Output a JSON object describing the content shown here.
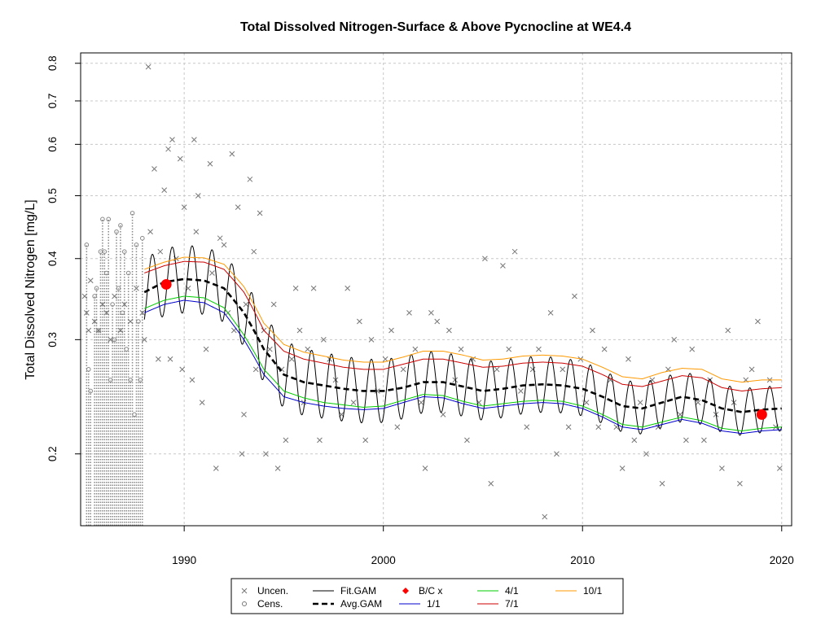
{
  "chart_data": {
    "type": "scatter",
    "title": "Total Dissolved Nitrogen-Surface & Above Pycnocline at WE4.4",
    "xlabel": "",
    "ylabel": "Total Dissolved Nitrogen [mg/L]",
    "x_ticks": [
      "1990",
      "2000",
      "2010",
      "2020"
    ],
    "y_ticks": [
      "0.2",
      "0.3",
      "0.4",
      "0.5",
      "0.6",
      "0.7",
      "0.8"
    ],
    "y_scale": "log",
    "xlim": [
      1984.8,
      2020.5
    ],
    "ylim": [
      0.155,
      0.83
    ],
    "grid": true,
    "legend_position": "bottom",
    "legend": [
      {
        "label": "Uncen.",
        "symbol": "x",
        "color": "#777777"
      },
      {
        "label": "Cens.",
        "symbol": "circle",
        "color": "#777777"
      },
      {
        "label": "Fit.GAM",
        "symbol": "line",
        "color": "#000000"
      },
      {
        "label": "Avg.GAM",
        "symbol": "dashed",
        "color": "#000000"
      },
      {
        "label": "B/C x",
        "symbol": "diamond",
        "color": "#ff0000"
      },
      {
        "label": "1/1",
        "symbol": "line",
        "color": "#0000cc"
      },
      {
        "label": "4/1",
        "symbol": "line",
        "color": "#00cc00"
      },
      {
        "label": "7/1",
        "symbol": "line",
        "color": "#cc0000"
      },
      {
        "label": "10/1",
        "symbol": "line",
        "color": "#ff9900"
      }
    ],
    "colors": {
      "uncensored": "#777777",
      "censored": "#888888",
      "fit": "#000000",
      "avg": "#000000",
      "bc": "#ff0000",
      "d1": "#0000cc",
      "d4": "#00cc00",
      "d7": "#cc0000",
      "d10": "#ff9900",
      "grid": "#c8c8c8"
    },
    "uncensored_points": [
      [
        1985.0,
        0.35
      ],
      [
        1985.1,
        0.33
      ],
      [
        1985.2,
        0.31
      ],
      [
        1985.3,
        0.37
      ],
      [
        1985.5,
        0.32
      ],
      [
        1985.7,
        0.31
      ],
      [
        1985.9,
        0.34
      ],
      [
        1986.1,
        0.33
      ],
      [
        1986.3,
        0.3
      ],
      [
        1986.5,
        0.35
      ],
      [
        1986.8,
        0.31
      ],
      [
        1987.0,
        0.34
      ],
      [
        1987.3,
        0.32
      ],
      [
        1987.6,
        0.36
      ],
      [
        1987.9,
        0.33
      ],
      [
        1988.0,
        0.3
      ],
      [
        1988.2,
        0.79
      ],
      [
        1988.3,
        0.44
      ],
      [
        1988.5,
        0.55
      ],
      [
        1988.7,
        0.28
      ],
      [
        1988.8,
        0.41
      ],
      [
        1989.0,
        0.51
      ],
      [
        1989.2,
        0.59
      ],
      [
        1989.3,
        0.28
      ],
      [
        1989.4,
        0.61
      ],
      [
        1989.6,
        0.4
      ],
      [
        1989.8,
        0.57
      ],
      [
        1989.9,
        0.27
      ],
      [
        1990.0,
        0.48
      ],
      [
        1990.2,
        0.36
      ],
      [
        1990.4,
        0.26
      ],
      [
        1990.5,
        0.61
      ],
      [
        1990.6,
        0.44
      ],
      [
        1990.7,
        0.5
      ],
      [
        1990.9,
        0.24
      ],
      [
        1991.1,
        0.29
      ],
      [
        1991.3,
        0.56
      ],
      [
        1991.4,
        0.38
      ],
      [
        1991.6,
        0.19
      ],
      [
        1991.8,
        0.43
      ],
      [
        1992.0,
        0.42
      ],
      [
        1992.2,
        0.33
      ],
      [
        1992.4,
        0.58
      ],
      [
        1992.5,
        0.31
      ],
      [
        1992.7,
        0.48
      ],
      [
        1992.9,
        0.2
      ],
      [
        1993.0,
        0.23
      ],
      [
        1993.1,
        0.34
      ],
      [
        1993.3,
        0.53
      ],
      [
        1993.5,
        0.41
      ],
      [
        1993.6,
        0.27
      ],
      [
        1993.8,
        0.47
      ],
      [
        1994.0,
        0.31
      ],
      [
        1994.1,
        0.2
      ],
      [
        1994.3,
        0.29
      ],
      [
        1994.5,
        0.34
      ],
      [
        1994.7,
        0.19
      ],
      [
        1994.9,
        0.27
      ],
      [
        1995.1,
        0.21
      ],
      [
        1995.4,
        0.28
      ],
      [
        1995.6,
        0.36
      ],
      [
        1995.8,
        0.31
      ],
      [
        1996.0,
        0.24
      ],
      [
        1996.2,
        0.29
      ],
      [
        1996.5,
        0.36
      ],
      [
        1996.8,
        0.21
      ],
      [
        1997.0,
        0.3
      ],
      [
        1997.3,
        0.28
      ],
      [
        1997.6,
        0.26
      ],
      [
        1997.9,
        0.23
      ],
      [
        1998.2,
        0.36
      ],
      [
        1998.5,
        0.24
      ],
      [
        1998.8,
        0.32
      ],
      [
        1999.1,
        0.21
      ],
      [
        1999.4,
        0.3
      ],
      [
        1999.7,
        0.25
      ],
      [
        2000.1,
        0.28
      ],
      [
        2000.4,
        0.31
      ],
      [
        2000.7,
        0.22
      ],
      [
        2001.0,
        0.27
      ],
      [
        2001.3,
        0.33
      ],
      [
        2001.6,
        0.29
      ],
      [
        2001.9,
        0.24
      ],
      [
        2002.1,
        0.19
      ],
      [
        2002.4,
        0.33
      ],
      [
        2002.7,
        0.32
      ],
      [
        2003.0,
        0.23
      ],
      [
        2003.3,
        0.31
      ],
      [
        2003.6,
        0.26
      ],
      [
        2003.9,
        0.29
      ],
      [
        2004.2,
        0.21
      ],
      [
        2004.5,
        0.28
      ],
      [
        2004.8,
        0.24
      ],
      [
        2005.1,
        0.4
      ],
      [
        2005.4,
        0.18
      ],
      [
        2005.7,
        0.27
      ],
      [
        2006.0,
        0.39
      ],
      [
        2006.3,
        0.29
      ],
      [
        2006.6,
        0.41
      ],
      [
        2006.9,
        0.25
      ],
      [
        2007.2,
        0.22
      ],
      [
        2007.5,
        0.27
      ],
      [
        2007.8,
        0.29
      ],
      [
        2008.1,
        0.16
      ],
      [
        2008.4,
        0.33
      ],
      [
        2008.7,
        0.2
      ],
      [
        2009.0,
        0.27
      ],
      [
        2009.3,
        0.22
      ],
      [
        2009.6,
        0.35
      ],
      [
        2009.9,
        0.28
      ],
      [
        2010.2,
        0.24
      ],
      [
        2010.5,
        0.31
      ],
      [
        2010.8,
        0.22
      ],
      [
        2011.1,
        0.29
      ],
      [
        2011.4,
        0.26
      ],
      [
        2011.7,
        0.22
      ],
      [
        2012.0,
        0.19
      ],
      [
        2012.3,
        0.28
      ],
      [
        2012.6,
        0.21
      ],
      [
        2012.9,
        0.24
      ],
      [
        2013.2,
        0.2
      ],
      [
        2013.5,
        0.26
      ],
      [
        2013.8,
        0.22
      ],
      [
        2014.0,
        0.18
      ],
      [
        2014.3,
        0.27
      ],
      [
        2014.6,
        0.3
      ],
      [
        2014.9,
        0.23
      ],
      [
        2015.2,
        0.21
      ],
      [
        2015.5,
        0.29
      ],
      [
        2015.8,
        0.24
      ],
      [
        2016.1,
        0.21
      ],
      [
        2016.4,
        0.26
      ],
      [
        2016.7,
        0.23
      ],
      [
        2017.0,
        0.19
      ],
      [
        2017.3,
        0.31
      ],
      [
        2017.6,
        0.24
      ],
      [
        2017.9,
        0.18
      ],
      [
        2018.2,
        0.26
      ],
      [
        2018.5,
        0.27
      ],
      [
        2018.8,
        0.32
      ],
      [
        2019.1,
        0.23
      ],
      [
        2019.4,
        0.26
      ],
      [
        2019.7,
        0.22
      ],
      [
        2019.9,
        0.19
      ]
    ],
    "censored_points": [
      [
        1985.1,
        0.42
      ],
      [
        1985.2,
        0.27
      ],
      [
        1985.3,
        0.25
      ],
      [
        1985.5,
        0.35
      ],
      [
        1985.6,
        0.36
      ],
      [
        1985.7,
        0.31
      ],
      [
        1985.8,
        0.41
      ],
      [
        1985.9,
        0.46
      ],
      [
        1986.0,
        0.41
      ],
      [
        1986.1,
        0.38
      ],
      [
        1986.2,
        0.46
      ],
      [
        1986.3,
        0.26
      ],
      [
        1986.4,
        0.34
      ],
      [
        1986.5,
        0.3
      ],
      [
        1986.6,
        0.44
      ],
      [
        1986.7,
        0.36
      ],
      [
        1986.8,
        0.45
      ],
      [
        1986.9,
        0.33
      ],
      [
        1987.0,
        0.41
      ],
      [
        1987.1,
        0.29
      ],
      [
        1987.2,
        0.38
      ],
      [
        1987.3,
        0.26
      ],
      [
        1987.4,
        0.47
      ],
      [
        1987.5,
        0.23
      ],
      [
        1987.6,
        0.42
      ],
      [
        1987.7,
        0.32
      ],
      [
        1987.8,
        0.26
      ],
      [
        1987.9,
        0.43
      ]
    ],
    "censor_floor": 0.155,
    "bc_points": [
      {
        "x": 1989.1,
        "y": 0.365
      },
      {
        "x": 2019.0,
        "y": 0.23
      }
    ],
    "curves": {
      "years": [
        1988.0,
        1989.0,
        1990.0,
        1991.0,
        1992.0,
        1993.0,
        1994.0,
        1995.0,
        1996.0,
        1997.0,
        1998.0,
        1999.0,
        2000.0,
        2001.0,
        2002.0,
        2003.0,
        2004.0,
        2005.0,
        2006.0,
        2007.0,
        2008.0,
        2009.0,
        2010.0,
        2011.0,
        2012.0,
        2013.0,
        2014.0,
        2015.0,
        2016.0,
        2017.0,
        2018.0,
        2019.0,
        2020.0
      ],
      "avg_gam": [
        0.355,
        0.368,
        0.372,
        0.37,
        0.36,
        0.33,
        0.29,
        0.265,
        0.258,
        0.255,
        0.252,
        0.25,
        0.25,
        0.253,
        0.258,
        0.258,
        0.254,
        0.25,
        0.252,
        0.255,
        0.256,
        0.255,
        0.252,
        0.245,
        0.237,
        0.235,
        0.24,
        0.245,
        0.242,
        0.235,
        0.232,
        0.234,
        0.235
      ],
      "d1": [
        0.33,
        0.34,
        0.345,
        0.342,
        0.33,
        0.3,
        0.265,
        0.245,
        0.24,
        0.237,
        0.235,
        0.234,
        0.235,
        0.24,
        0.245,
        0.244,
        0.239,
        0.235,
        0.237,
        0.239,
        0.24,
        0.239,
        0.235,
        0.228,
        0.22,
        0.218,
        0.222,
        0.226,
        0.223,
        0.217,
        0.215,
        0.217,
        0.218
      ],
      "d4": [
        0.335,
        0.345,
        0.35,
        0.348,
        0.336,
        0.305,
        0.27,
        0.25,
        0.244,
        0.24,
        0.238,
        0.236,
        0.237,
        0.242,
        0.247,
        0.246,
        0.241,
        0.237,
        0.239,
        0.241,
        0.242,
        0.241,
        0.237,
        0.23,
        0.222,
        0.22,
        0.224,
        0.228,
        0.225,
        0.219,
        0.217,
        0.219,
        0.22
      ],
      "d7": [
        0.38,
        0.39,
        0.396,
        0.395,
        0.385,
        0.355,
        0.31,
        0.288,
        0.28,
        0.276,
        0.272,
        0.27,
        0.27,
        0.275,
        0.28,
        0.28,
        0.276,
        0.272,
        0.273,
        0.276,
        0.277,
        0.276,
        0.273,
        0.265,
        0.256,
        0.254,
        0.259,
        0.264,
        0.262,
        0.253,
        0.25,
        0.252,
        0.253
      ],
      "d10": [
        0.385,
        0.395,
        0.402,
        0.401,
        0.392,
        0.362,
        0.318,
        0.295,
        0.287,
        0.283,
        0.279,
        0.277,
        0.277,
        0.282,
        0.288,
        0.288,
        0.284,
        0.279,
        0.28,
        0.283,
        0.284,
        0.283,
        0.28,
        0.272,
        0.263,
        0.261,
        0.267,
        0.271,
        0.27,
        0.261,
        0.258,
        0.26,
        0.26
      ]
    }
  }
}
